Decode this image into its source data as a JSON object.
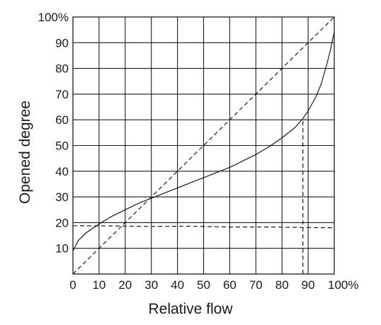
{
  "chart_data": {
    "type": "line",
    "title": "",
    "xlabel": "Relative flow",
    "ylabel": "Opened degree",
    "xlim": [
      0,
      100
    ],
    "ylim": [
      0,
      100
    ],
    "grid": true,
    "x_ticks": [
      {
        "value": 0,
        "label": "0"
      },
      {
        "value": 10,
        "label": "10"
      },
      {
        "value": 20,
        "label": "20"
      },
      {
        "value": 30,
        "label": "30"
      },
      {
        "value": 40,
        "label": "40"
      },
      {
        "value": 50,
        "label": "50"
      },
      {
        "value": 60,
        "label": "60"
      },
      {
        "value": 70,
        "label": "70"
      },
      {
        "value": 80,
        "label": "80"
      },
      {
        "value": 90,
        "label": "90"
      },
      {
        "value": 100,
        "label": "100%"
      }
    ],
    "y_ticks": [
      {
        "value": 10,
        "label": "10"
      },
      {
        "value": 20,
        "label": "20"
      },
      {
        "value": 30,
        "label": "30"
      },
      {
        "value": 40,
        "label": "40"
      },
      {
        "value": 50,
        "label": "50"
      },
      {
        "value": 60,
        "label": "60"
      },
      {
        "value": 70,
        "label": "70"
      },
      {
        "value": 80,
        "label": "80"
      },
      {
        "value": 90,
        "label": "90"
      },
      {
        "value": 100,
        "label": "100%"
      }
    ],
    "series": [
      {
        "style": "solid",
        "points": [
          [
            0,
            9
          ],
          [
            2,
            13
          ],
          [
            5,
            16
          ],
          [
            10,
            19.5
          ],
          [
            15,
            22.5
          ],
          [
            20,
            25
          ],
          [
            25,
            27.5
          ],
          [
            30,
            29.5
          ],
          [
            35,
            31.5
          ],
          [
            40,
            33.5
          ],
          [
            45,
            35.5
          ],
          [
            50,
            37.5
          ],
          [
            55,
            39.5
          ],
          [
            60,
            41.5
          ],
          [
            65,
            44
          ],
          [
            70,
            46.5
          ],
          [
            75,
            49.5
          ],
          [
            80,
            53
          ],
          [
            85,
            57
          ],
          [
            88,
            60.5
          ],
          [
            90,
            63.5
          ],
          [
            93,
            69
          ],
          [
            95,
            74
          ],
          [
            97,
            81
          ],
          [
            98.5,
            87
          ],
          [
            99.5,
            92
          ],
          [
            100,
            94
          ]
        ]
      },
      {
        "style": "dashed",
        "points": [
          [
            0,
            0
          ],
          [
            100,
            100
          ]
        ]
      },
      {
        "style": "dashed",
        "points": [
          [
            0,
            18.8
          ],
          [
            15,
            18.7
          ],
          [
            30,
            18.5
          ],
          [
            45,
            18.6
          ],
          [
            60,
            18.3
          ],
          [
            75,
            18.3
          ],
          [
            88,
            18.1
          ],
          [
            100,
            18
          ]
        ]
      },
      {
        "style": "dashed",
        "points": [
          [
            88,
            0
          ],
          [
            88,
            59
          ],
          [
            89,
            60.5
          ]
        ]
      }
    ]
  }
}
